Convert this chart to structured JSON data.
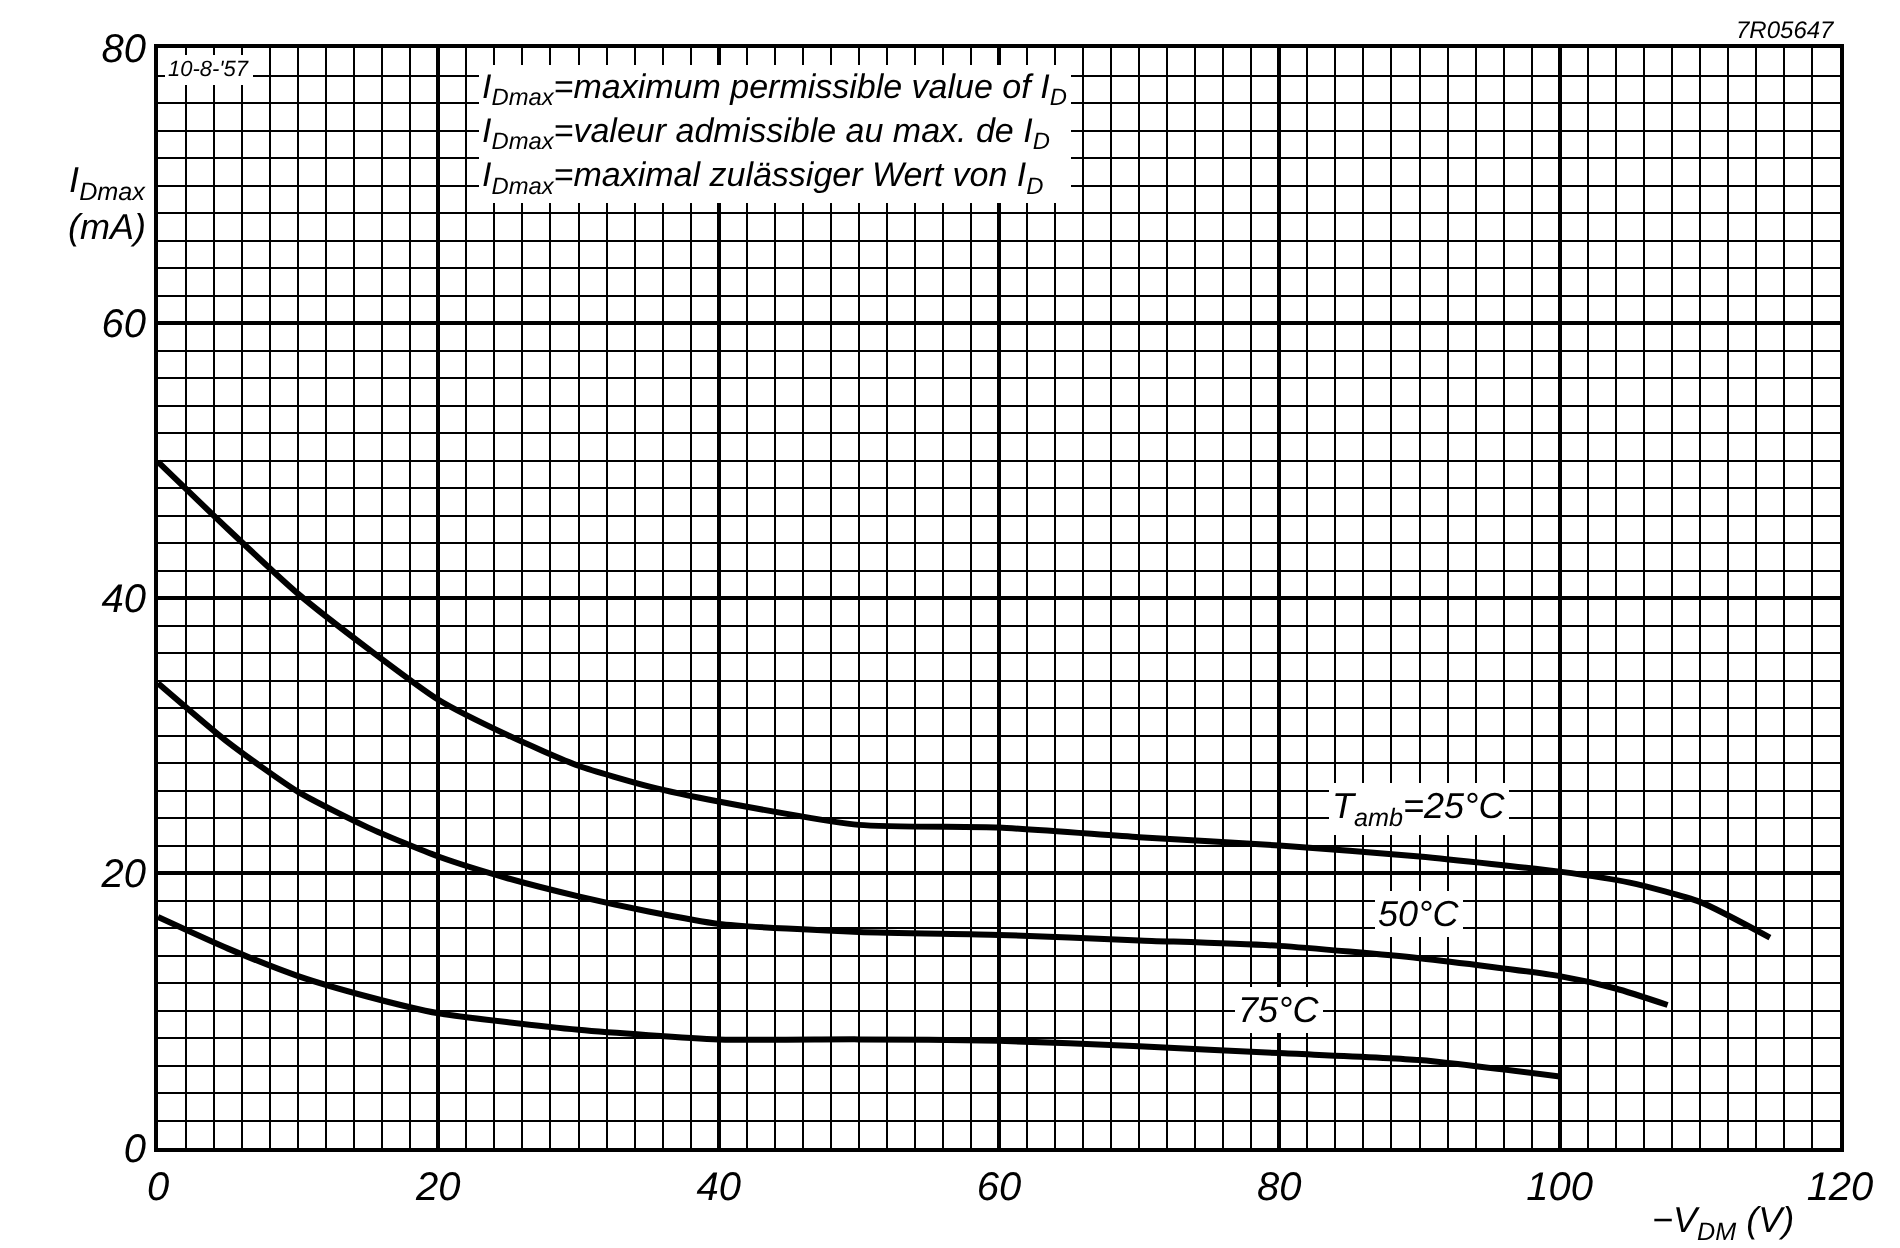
{
  "chart_data": {
    "type": "line",
    "xlabel": "−V$_{DM}$ (V)",
    "ylabel": "I$_{Dmax}$ (mA)",
    "xlim": [
      0,
      120
    ],
    "xticks": [
      0,
      20,
      40,
      60,
      80,
      100,
      120
    ],
    "ylim": [
      0,
      80
    ],
    "yticks": [
      0,
      20,
      40,
      60,
      80
    ],
    "grid": true,
    "legend": false,
    "marker": "none",
    "line_style": "solid",
    "series": [
      {
        "name": "T$_{amb}$=25°C",
        "color": "#000000",
        "x": [
          0,
          5,
          10,
          15,
          20,
          25,
          30,
          35,
          40,
          50,
          60,
          70,
          80,
          90,
          100,
          105,
          110,
          115
        ],
        "values": [
          49.9,
          45,
          40.3,
          36.3,
          32.6,
          30,
          27.8,
          26.3,
          25.2,
          23.5,
          23.3,
          22.6,
          22,
          21.2,
          20.1,
          19.3,
          17.9,
          15.3
        ]
      },
      {
        "name": "50°C",
        "color": "#000000",
        "x": [
          0,
          5,
          10,
          15,
          20,
          25,
          30,
          35,
          40,
          50,
          60,
          70,
          80,
          90,
          100,
          104,
          107.7
        ],
        "values": [
          33.8,
          29.5,
          25.9,
          23.3,
          21.2,
          19.6,
          18.3,
          17.2,
          16.3,
          15.7,
          15.5,
          15.1,
          14.7,
          13.8,
          12.5,
          11.6,
          10.4
        ]
      },
      {
        "name": "75°C",
        "color": "#000000",
        "x": [
          0,
          5,
          10,
          15,
          20,
          30,
          40,
          50,
          60,
          70,
          80,
          90,
          100
        ],
        "values": [
          16.8,
          14.5,
          12.5,
          11,
          9.8,
          8.6,
          7.9,
          7.9,
          7.8,
          7.4,
          6.9,
          6.4,
          5.2
        ]
      }
    ],
    "annotations": [
      "I$_{Dmax}$=maximum permissible value of I$_{D}$\nI$_{Dmax}$=valeur admissible au max. de I$_{D}$\nI$_{Dmax}$=maximal zulässiger Wert von I$_{D}$",
      "10-8-'57",
      "7R05647"
    ]
  }
}
